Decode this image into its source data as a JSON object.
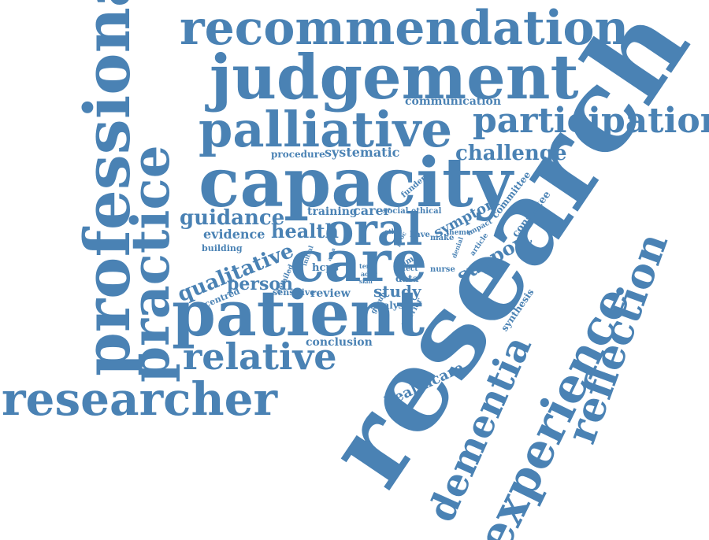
{
  "palette": {
    "word": "#4a82b4",
    "background": "#ffffff"
  },
  "words": [
    "recommendation",
    "judgement",
    "palliative",
    "participation",
    "communication",
    "capacity",
    "challenge",
    "systematic",
    "procedure",
    "professional",
    "practice",
    "research",
    "guidance",
    "training",
    "carer",
    "social",
    "ethical",
    "funder",
    "committee",
    "consultee",
    "symptom",
    "evidence",
    "health",
    "oral",
    "have",
    "make",
    "ethic",
    "proc",
    "impact",
    "theme",
    "article",
    "denial",
    "building",
    "qualitative",
    "care",
    "support",
    "person",
    "centred",
    "initial",
    "area",
    "hcps",
    "term",
    "addr",
    "skill",
    "time",
    "effect",
    "data",
    "nurse",
    "detailed",
    "sensitive",
    "review",
    "study",
    "analysis",
    "group",
    "barrier",
    "synthesis",
    "patient",
    "relative",
    "conclusion",
    "dementia",
    "experience",
    "reflection",
    "healthcare",
    "researcher"
  ]
}
